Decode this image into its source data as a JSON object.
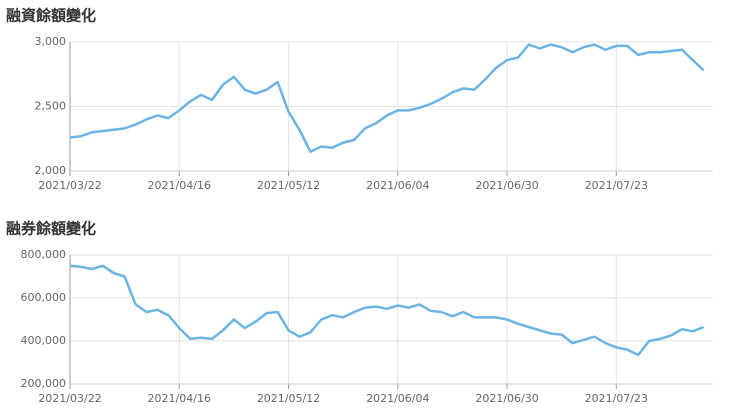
{
  "chart_data": [
    {
      "type": "line",
      "title": "融資餘額變化",
      "categories": [
        "2021/03/22",
        null,
        null,
        null,
        null,
        null,
        null,
        null,
        null,
        null,
        "2021/04/16",
        null,
        null,
        null,
        null,
        null,
        null,
        null,
        null,
        null,
        "2021/05/12",
        null,
        null,
        null,
        null,
        null,
        null,
        null,
        null,
        null,
        "2021/06/04",
        null,
        null,
        null,
        null,
        null,
        null,
        null,
        null,
        null,
        "2021/06/30",
        null,
        null,
        null,
        null,
        null,
        null,
        null,
        null,
        null,
        "2021/07/23",
        null,
        null,
        null,
        null,
        null,
        null,
        null,
        null
      ],
      "series": [
        {
          "color": "#6cb4e4",
          "values": [
            2260,
            2270,
            2300,
            2310,
            2320,
            2330,
            2360,
            2400,
            2430,
            2410,
            2470,
            2540,
            2590,
            2550,
            2670,
            2730,
            2630,
            2600,
            2630,
            2690,
            2460,
            2320,
            2150,
            2190,
            2180,
            2220,
            2240,
            2330,
            2370,
            2430,
            2470,
            2470,
            2490,
            2520,
            2560,
            2610,
            2640,
            2630,
            2710,
            2800,
            2860,
            2880,
            2980,
            2950,
            2980,
            2960,
            2920,
            2960,
            2980,
            2940,
            2970,
            2970,
            2900,
            2920,
            2920,
            2930,
            2940,
            2860,
            2780
          ]
        }
      ],
      "ylim": [
        2000,
        3000
      ],
      "yticks": [
        {
          "value": 2000,
          "label": "2,000"
        },
        {
          "value": 2500,
          "label": "2,500"
        },
        {
          "value": 3000,
          "label": "3,000"
        }
      ],
      "grid": true
    },
    {
      "type": "line",
      "title": "融券餘額變化",
      "categories": [
        "2021/03/22",
        null,
        null,
        null,
        null,
        null,
        null,
        null,
        null,
        null,
        "2021/04/16",
        null,
        null,
        null,
        null,
        null,
        null,
        null,
        null,
        null,
        "2021/05/12",
        null,
        null,
        null,
        null,
        null,
        null,
        null,
        null,
        null,
        "2021/06/04",
        null,
        null,
        null,
        null,
        null,
        null,
        null,
        null,
        null,
        "2021/06/30",
        null,
        null,
        null,
        null,
        null,
        null,
        null,
        null,
        null,
        "2021/07/23",
        null,
        null,
        null,
        null,
        null,
        null,
        null,
        null
      ],
      "series": [
        {
          "color": "#6cb4e4",
          "values": [
            750000,
            745000,
            735000,
            750000,
            716000,
            700000,
            570000,
            535000,
            545000,
            520000,
            460000,
            410000,
            415000,
            410000,
            450000,
            500000,
            460000,
            490000,
            530000,
            535000,
            450000,
            420000,
            440000,
            500000,
            520000,
            510000,
            535000,
            555000,
            560000,
            550000,
            565000,
            555000,
            570000,
            540000,
            535000,
            515000,
            535000,
            510000,
            510000,
            510000,
            500000,
            480000,
            465000,
            450000,
            435000,
            430000,
            390000,
            405000,
            420000,
            390000,
            370000,
            360000,
            335000,
            400000,
            410000,
            425000,
            455000,
            445000,
            465000
          ]
        }
      ],
      "ylim": [
        200000,
        800000
      ],
      "yticks": [
        {
          "value": 200000,
          "label": "200,000"
        },
        {
          "value": 400000,
          "label": "400,000"
        },
        {
          "value": 600000,
          "label": "600,000"
        },
        {
          "value": 800000,
          "label": "800,000"
        }
      ],
      "grid": true
    }
  ]
}
